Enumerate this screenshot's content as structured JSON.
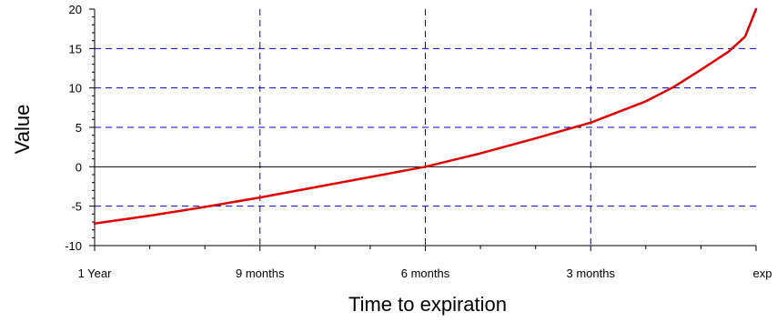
{
  "chart_data": {
    "type": "line",
    "title": "",
    "xlabel": "Time to expiration",
    "ylabel": "Value",
    "x_tick_labels": [
      "1 Year",
      "9 months",
      "6 months",
      "3 months",
      "exp"
    ],
    "y_tick_labels": [
      "-10",
      "-5",
      "0",
      "5",
      "10",
      "15",
      "20"
    ],
    "xlim_months_remaining": [
      12,
      0
    ],
    "ylim": [
      -10,
      20
    ],
    "grid": true,
    "colors": {
      "line": "#e00000",
      "grid": "#0000cc",
      "zero_line": "#000000"
    },
    "series": [
      {
        "x_months_remaining": [
          12,
          11,
          10,
          9,
          8,
          7,
          6,
          5,
          4,
          3,
          2,
          1.5,
          1,
          0.5,
          0.2,
          0
        ],
        "values": [
          -7.2,
          -6.2,
          -5.1,
          -3.9,
          -2.6,
          -1.3,
          0,
          1.7,
          3.6,
          5.6,
          8.3,
          10.1,
          12.3,
          14.6,
          16.5,
          20
        ]
      }
    ]
  }
}
